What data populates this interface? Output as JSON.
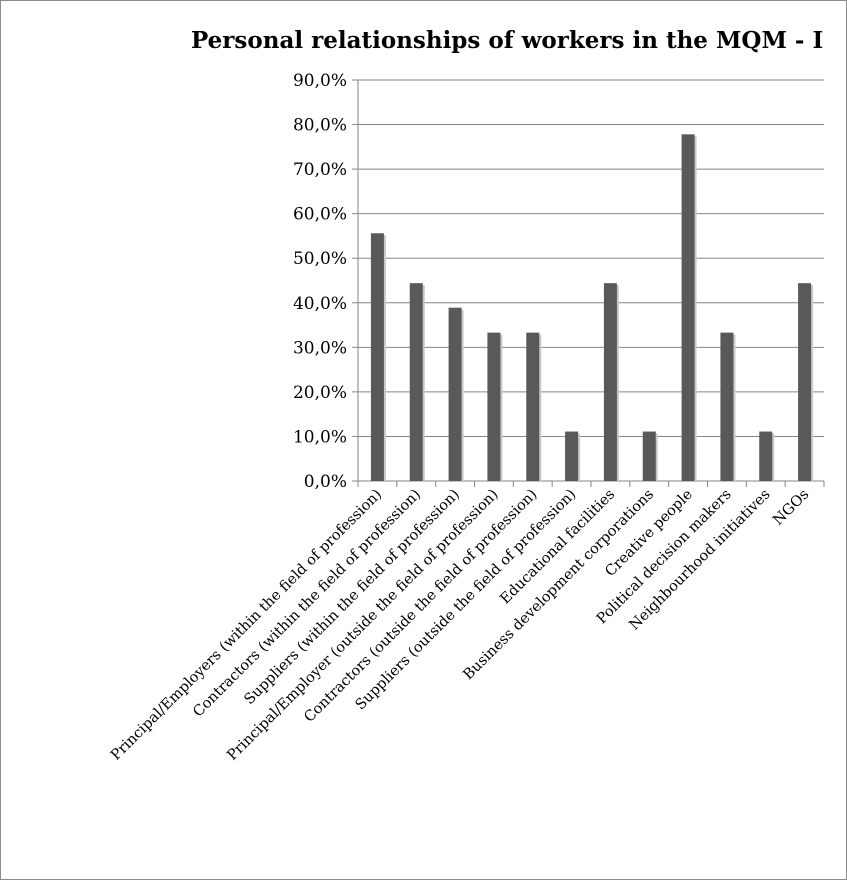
{
  "chart_data": {
    "type": "bar",
    "title": "Personal relationships  of workers in the MQM - I",
    "xlabel": "",
    "ylabel": "",
    "ylim": [
      0,
      90
    ],
    "yticks": [
      "0,0%",
      "10,0%",
      "20,0%",
      "30,0%",
      "40,0%",
      "50,0%",
      "60,0%",
      "70,0%",
      "80,0%",
      "90,0%"
    ],
    "grid": true,
    "categories": [
      "Principal/Employers  (within the field of profession)",
      "Contractors (within the field of profession)",
      "Suppliers (within the field of profession)",
      "Principal/Employer (outside the field of profession)",
      "Contractors (outside the field of profession)",
      "Suppliers (outside the field of profession)",
      "Educational facilities",
      "Business development corporations",
      "Creative people",
      "Political decision makers",
      "Neighbourhood initiatives",
      "NGOs"
    ],
    "values": [
      55.6,
      44.4,
      38.9,
      33.3,
      33.3,
      11.1,
      44.4,
      11.1,
      77.8,
      33.3,
      11.1,
      44.4
    ],
    "colors": {
      "bar": "#595959",
      "grid": "#868686",
      "axis": "#868686"
    }
  }
}
